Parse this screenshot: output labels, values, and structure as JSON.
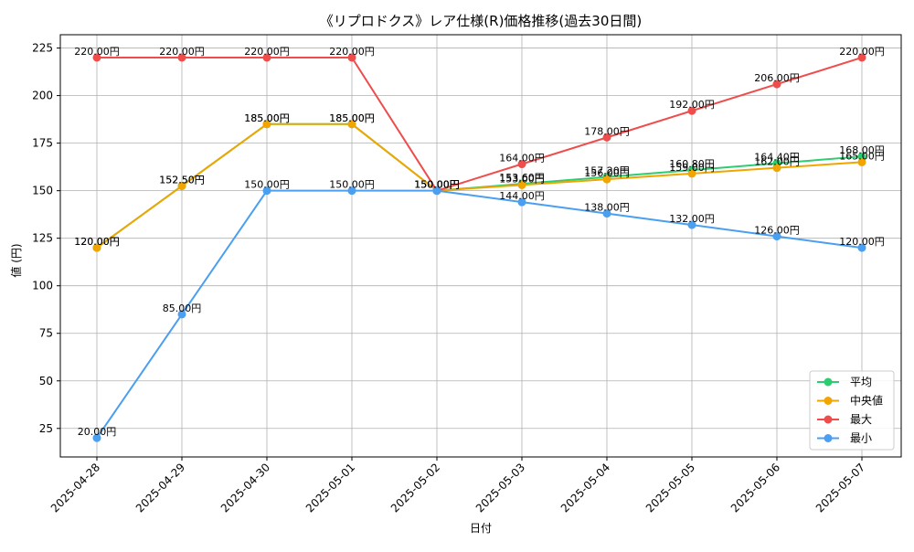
{
  "chart_data": {
    "type": "line",
    "title": "《リプロドクス》レア仕様(R)価格推移(過去30日間)",
    "xlabel": "日付",
    "ylabel": "値 (円)",
    "ylim": [
      10,
      232
    ],
    "yticks": [
      25,
      50,
      75,
      100,
      125,
      150,
      175,
      200,
      225
    ],
    "grid": true,
    "legend_position": "lower-right",
    "value_label_suffix": "円",
    "x": [
      "2025-04-28",
      "2025-04-29",
      "2025-04-30",
      "2025-05-01",
      "2025-05-02",
      "2025-05-03",
      "2025-05-04",
      "2025-05-05",
      "2025-05-06",
      "2025-05-07"
    ],
    "series": [
      {
        "name": "平均",
        "color": "#2ecc71",
        "values": [
          120.0,
          152.5,
          185.0,
          185.0,
          150.0,
          153.6,
          157.2,
          160.8,
          164.4,
          168.0
        ]
      },
      {
        "name": "中央値",
        "color": "#f0a500",
        "values": [
          120.0,
          152.5,
          185.0,
          185.0,
          150.0,
          153.0,
          156.0,
          159.0,
          162.0,
          165.0
        ]
      },
      {
        "name": "最大",
        "color": "#ef4c4c",
        "values": [
          220.0,
          220.0,
          220.0,
          220.0,
          150.0,
          164.0,
          178.0,
          192.0,
          206.0,
          220.0
        ]
      },
      {
        "name": "最小",
        "color": "#4a9ff0",
        "values": [
          20.0,
          85.0,
          150.0,
          150.0,
          150.0,
          144.0,
          138.0,
          132.0,
          126.0,
          120.0
        ]
      }
    ]
  }
}
